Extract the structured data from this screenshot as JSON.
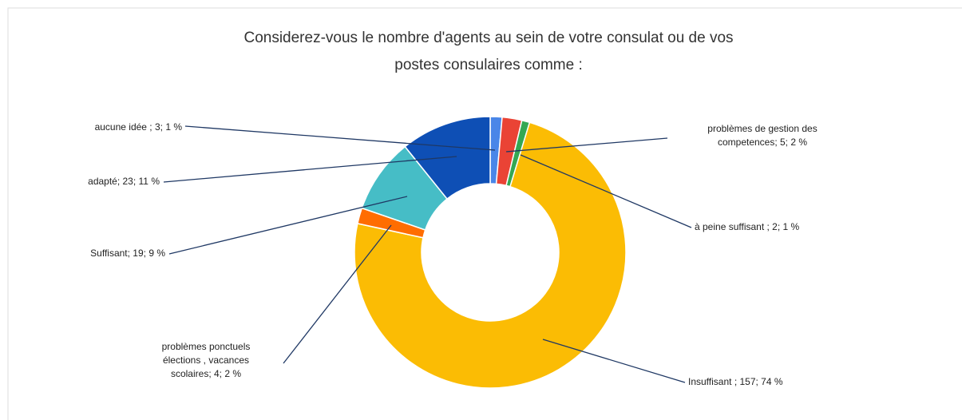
{
  "chart_data": {
    "type": "donut",
    "title": [
      "Considerez-vous le nombre d'agents  au sein de votre consulat ou de vos",
      "postes consulaires comme :"
    ],
    "values": [
      3,
      5,
      2,
      157,
      4,
      19,
      23
    ],
    "value_labels": [
      [
        "aucune idée ; 3; 1 %"
      ],
      [
        "problèmes de gestion des",
        "competences; 5; 2 %"
      ],
      [
        "à peine suffisant ; 2; 1 %"
      ],
      [
        "Insuffisant ; 157; 74 %"
      ],
      [
        "problèmes ponctuels",
        "élections , vacances",
        "scolaires; 4; 2 %"
      ],
      [
        "Suffisant; 19; 9 %"
      ],
      [
        "adapté; 23; 11 %"
      ]
    ],
    "colors": [
      "#4a86e8",
      "#ea4335",
      "#34a853",
      "#fbbc04",
      "#ff6d01",
      "#46bdc6",
      "#0e4fb5"
    ]
  }
}
